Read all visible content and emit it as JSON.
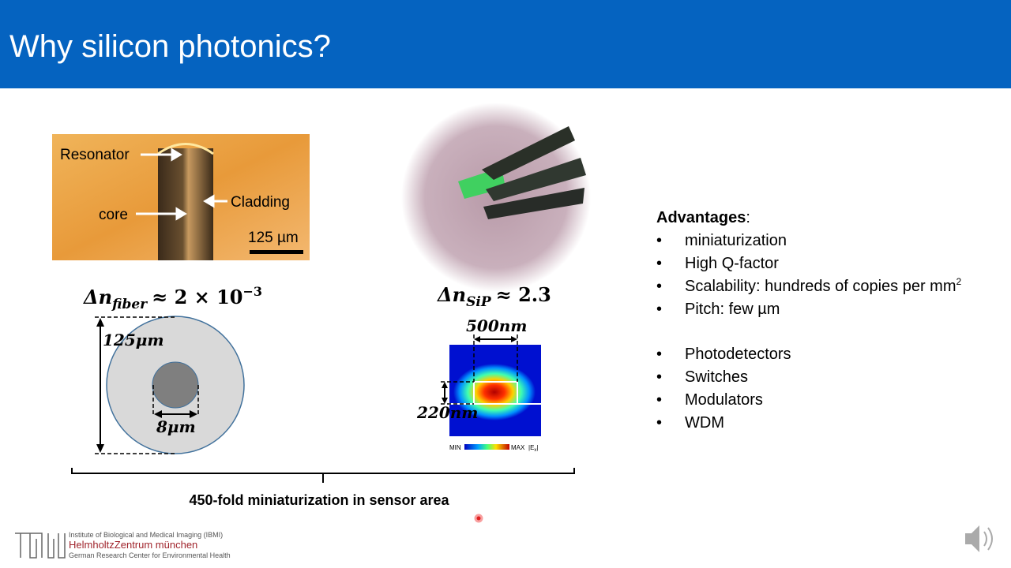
{
  "header": {
    "title": "Why silicon photonics?"
  },
  "fiber_photo": {
    "labels": [
      "Resonator",
      "Cladding",
      "core"
    ],
    "scale_bar": "125 µm"
  },
  "fiber_equation": {
    "symbol": "Δn",
    "subscript": "fiber",
    "relation": "≈ 2 × 10",
    "exponent": "−3"
  },
  "fiber_diagram": {
    "outer_diameter": "125μm",
    "core_diameter": "8μm"
  },
  "sip_equation": {
    "symbol": "Δn",
    "subscript": "SiP",
    "relation": "≈ 2.3"
  },
  "sip_diagram": {
    "width": "500nm",
    "height": "220nm",
    "colorbar": {
      "min": "MIN",
      "max": "MAX",
      "field": "|E",
      "field_subscript": "x",
      "field_close": "|"
    }
  },
  "summary": "450-fold miniaturization in sensor area",
  "advantages": {
    "heading": "Advantages",
    "colon": ":",
    "items": [
      "miniaturization",
      "High Q-factor",
      "Scalability: hundreds of copies per mm",
      "Pitch: few µm"
    ],
    "superscript": "2",
    "applications": [
      "Photodetectors",
      "Switches",
      "Modulators",
      "WDM"
    ]
  },
  "footer": {
    "institute": "Institute of Biological and Medical Imaging (IBMI)",
    "center": "HelmholtzZentrum münchen",
    "tagline": "German Research Center for Environmental Health"
  }
}
